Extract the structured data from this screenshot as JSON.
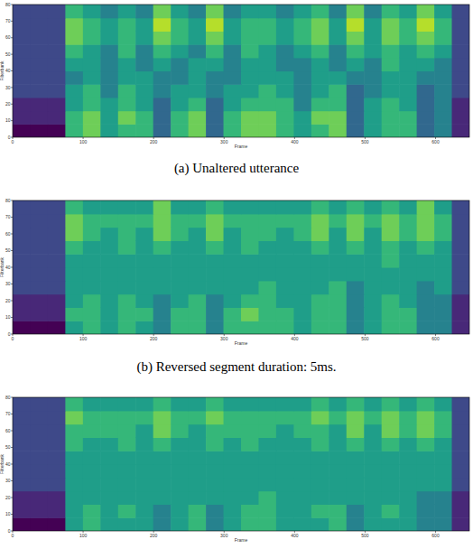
{
  "chart_data": [
    {
      "type": "heatmap",
      "title": "(a) Unaltered utterance",
      "x_label": "Frame",
      "y_label": "Filterbank",
      "xlim": [
        0,
        648
      ],
      "ylim": [
        0,
        80
      ],
      "xticks": [
        0,
        100,
        200,
        300,
        400,
        500,
        600
      ],
      "yticks": [
        0,
        10,
        20,
        30,
        40,
        50,
        60,
        70,
        80
      ],
      "zlim": [
        0,
        9
      ],
      "cells": [
        [
          0,
          0,
          0,
          6,
          7,
          5,
          6,
          6,
          3,
          6,
          7,
          3,
          6,
          7,
          7,
          6,
          5,
          6,
          7,
          3,
          5,
          6,
          6,
          3,
          4,
          1
        ],
        [
          1,
          1,
          1,
          6,
          7,
          5,
          7,
          6,
          3,
          6,
          7,
          3,
          6,
          7,
          7,
          6,
          5,
          7,
          7,
          3,
          5,
          6,
          6,
          3,
          4,
          1
        ],
        [
          1,
          1,
          1,
          5,
          6,
          5,
          6,
          5,
          3,
          5,
          6,
          3,
          5,
          6,
          6,
          6,
          4,
          6,
          6,
          3,
          5,
          6,
          5,
          3,
          4,
          1
        ],
        [
          2,
          2,
          2,
          5,
          6,
          4,
          6,
          5,
          4,
          5,
          5,
          4,
          5,
          5,
          6,
          5,
          4,
          5,
          6,
          3,
          4,
          5,
          5,
          3,
          4,
          2
        ],
        [
          2,
          2,
          2,
          4,
          5,
          4,
          5,
          5,
          4,
          4,
          5,
          4,
          4,
          5,
          5,
          5,
          4,
          5,
          5,
          4,
          4,
          5,
          5,
          4,
          4,
          2
        ],
        [
          2,
          2,
          2,
          5,
          5,
          4,
          5,
          4,
          5,
          4,
          5,
          5,
          4,
          5,
          5,
          4,
          4,
          5,
          4,
          5,
          4,
          6,
          5,
          5,
          4,
          2
        ],
        [
          2,
          2,
          2,
          6,
          5,
          4,
          6,
          4,
          6,
          5,
          4,
          6,
          4,
          6,
          5,
          4,
          5,
          6,
          4,
          6,
          5,
          6,
          5,
          6,
          5,
          2
        ],
        [
          2,
          2,
          2,
          7,
          6,
          5,
          6,
          5,
          7,
          6,
          5,
          7,
          5,
          6,
          6,
          5,
          6,
          7,
          5,
          7,
          5,
          7,
          6,
          7,
          6,
          2
        ],
        [
          2,
          2,
          2,
          7,
          6,
          5,
          6,
          5,
          8,
          6,
          5,
          8,
          5,
          6,
          6,
          5,
          6,
          7,
          5,
          8,
          5,
          7,
          6,
          8,
          6,
          2
        ],
        [
          2,
          2,
          2,
          6,
          5,
          4,
          5,
          4,
          7,
          5,
          4,
          7,
          4,
          5,
          5,
          4,
          5,
          6,
          4,
          7,
          4,
          6,
          5,
          7,
          5,
          2
        ]
      ]
    },
    {
      "type": "heatmap",
      "title": "(b) Reversed segment duration: 5ms.",
      "x_label": "Frame",
      "y_label": "Filterbank",
      "xlim": [
        0,
        648
      ],
      "ylim": [
        0,
        80
      ],
      "xticks": [
        0,
        100,
        200,
        300,
        400,
        500,
        600
      ],
      "yticks": [
        0,
        10,
        20,
        30,
        40,
        50,
        60,
        70,
        80
      ],
      "zlim": [
        0,
        9
      ],
      "cells": [
        [
          0,
          0,
          0,
          5,
          6,
          5,
          6,
          5,
          4,
          6,
          6,
          4,
          6,
          6,
          6,
          6,
          5,
          6,
          6,
          4,
          5,
          6,
          6,
          4,
          4,
          1
        ],
        [
          1,
          1,
          1,
          6,
          6,
          5,
          6,
          6,
          4,
          6,
          6,
          4,
          6,
          7,
          6,
          6,
          5,
          6,
          6,
          4,
          5,
          6,
          6,
          4,
          4,
          1
        ],
        [
          1,
          1,
          1,
          5,
          6,
          5,
          6,
          5,
          4,
          5,
          6,
          4,
          5,
          6,
          6,
          5,
          5,
          6,
          6,
          4,
          5,
          6,
          5,
          4,
          4,
          1
        ],
        [
          2,
          2,
          2,
          5,
          5,
          5,
          5,
          5,
          5,
          5,
          5,
          5,
          5,
          5,
          6,
          5,
          5,
          5,
          6,
          4,
          5,
          5,
          5,
          4,
          5,
          2
        ],
        [
          2,
          2,
          2,
          5,
          5,
          5,
          5,
          5,
          5,
          5,
          5,
          5,
          5,
          5,
          5,
          5,
          5,
          5,
          5,
          5,
          5,
          5,
          5,
          5,
          5,
          2
        ],
        [
          2,
          2,
          2,
          5,
          5,
          5,
          5,
          5,
          5,
          5,
          5,
          5,
          5,
          5,
          5,
          5,
          5,
          5,
          5,
          5,
          5,
          6,
          5,
          5,
          5,
          2
        ],
        [
          2,
          2,
          2,
          6,
          5,
          5,
          6,
          5,
          6,
          5,
          5,
          6,
          5,
          6,
          5,
          5,
          5,
          6,
          5,
          6,
          5,
          6,
          5,
          6,
          5,
          2
        ],
        [
          2,
          2,
          2,
          7,
          6,
          5,
          6,
          5,
          7,
          6,
          5,
          7,
          5,
          6,
          6,
          5,
          6,
          7,
          5,
          7,
          5,
          7,
          6,
          7,
          6,
          2
        ],
        [
          2,
          2,
          2,
          7,
          6,
          6,
          6,
          6,
          7,
          6,
          6,
          7,
          6,
          6,
          6,
          6,
          6,
          7,
          6,
          7,
          6,
          7,
          6,
          7,
          6,
          2
        ],
        [
          2,
          2,
          2,
          6,
          5,
          5,
          5,
          5,
          7,
          5,
          5,
          6,
          5,
          5,
          5,
          5,
          5,
          6,
          5,
          6,
          5,
          6,
          5,
          7,
          5,
          2
        ]
      ]
    },
    {
      "type": "heatmap",
      "x_label": "Frame",
      "y_label": "Filterbank",
      "xlim": [
        0,
        648
      ],
      "ylim": [
        0,
        80
      ],
      "xticks": [
        0,
        100,
        200,
        300,
        400,
        500,
        600
      ],
      "yticks": [
        0,
        10,
        20,
        30,
        40,
        50,
        60,
        70,
        80
      ],
      "zlim": [
        0,
        9
      ],
      "cells": [
        [
          0,
          0,
          0,
          5,
          6,
          5,
          5,
          5,
          4,
          5,
          6,
          4,
          5,
          6,
          6,
          5,
          5,
          5,
          6,
          4,
          5,
          5,
          5,
          4,
          4,
          1
        ],
        [
          1,
          1,
          1,
          5,
          6,
          5,
          6,
          5,
          4,
          5,
          6,
          4,
          5,
          6,
          6,
          5,
          5,
          6,
          6,
          4,
          5,
          6,
          5,
          4,
          4,
          1
        ],
        [
          1,
          1,
          1,
          5,
          5,
          5,
          5,
          5,
          5,
          5,
          5,
          5,
          5,
          5,
          6,
          5,
          5,
          5,
          5,
          5,
          5,
          5,
          5,
          4,
          4,
          1
        ],
        [
          2,
          2,
          2,
          5,
          5,
          5,
          5,
          5,
          5,
          5,
          5,
          5,
          5,
          5,
          5,
          5,
          5,
          5,
          5,
          5,
          5,
          5,
          5,
          5,
          5,
          2
        ],
        [
          2,
          2,
          2,
          5,
          5,
          5,
          5,
          5,
          5,
          5,
          5,
          5,
          5,
          5,
          5,
          5,
          5,
          5,
          5,
          5,
          5,
          5,
          5,
          5,
          5,
          2
        ],
        [
          2,
          2,
          2,
          5,
          5,
          5,
          5,
          5,
          5,
          5,
          5,
          5,
          5,
          5,
          5,
          5,
          5,
          5,
          5,
          5,
          5,
          5,
          5,
          5,
          5,
          2
        ],
        [
          2,
          2,
          2,
          6,
          5,
          5,
          6,
          5,
          6,
          5,
          5,
          6,
          5,
          6,
          5,
          5,
          5,
          6,
          5,
          6,
          5,
          6,
          5,
          6,
          5,
          2
        ],
        [
          2,
          2,
          2,
          6,
          6,
          6,
          6,
          5,
          7,
          6,
          5,
          6,
          6,
          6,
          6,
          5,
          6,
          6,
          5,
          7,
          5,
          7,
          6,
          7,
          6,
          2
        ],
        [
          2,
          2,
          2,
          7,
          6,
          6,
          6,
          6,
          7,
          6,
          6,
          7,
          6,
          6,
          6,
          6,
          6,
          7,
          6,
          7,
          6,
          7,
          6,
          7,
          6,
          2
        ],
        [
          2,
          2,
          2,
          6,
          5,
          5,
          5,
          5,
          6,
          5,
          5,
          6,
          5,
          5,
          5,
          5,
          5,
          6,
          5,
          6,
          5,
          6,
          5,
          6,
          5,
          2
        ]
      ]
    }
  ]
}
